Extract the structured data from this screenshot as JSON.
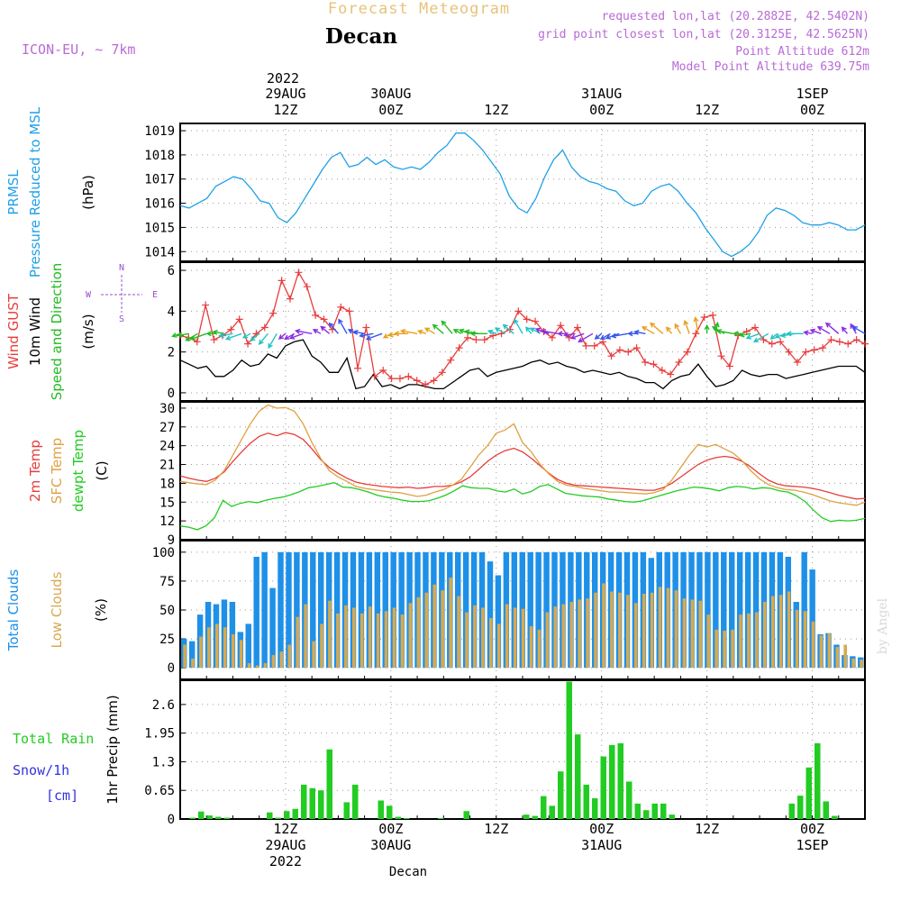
{
  "header": {
    "title": "Forecast Meteogram",
    "station": "Decan",
    "model": "ICON-EU, ~ 7km",
    "requested": "requested lon,lat (20.2882E, 42.5402N)",
    "gridpoint": "grid point closest lon,lat (20.3125E, 42.5625N)",
    "point_alt": "Point Altitude 612m",
    "model_alt": "Model Point Altitude 639.75m",
    "watermark": "by Angel",
    "footer": "Decan"
  },
  "colors": {
    "prmsl": "#1fa0e8",
    "gust": "#e83c3c",
    "wind": "#000000",
    "arrows_green": "#22bb22",
    "dir_purple": "#9a4fd0",
    "temp": "#e83c3c",
    "sfc": "#e0a040",
    "dewpt": "#22cc22",
    "total_clouds": "#1e90e8",
    "low_clouds": "#d7a950",
    "rain": "#22cc22",
    "snow": "#3333dd"
  },
  "time_axis": {
    "top_year": "2022",
    "ticks": [
      {
        "h": 12,
        "l1": "12Z",
        "l2": "29AUG",
        "l3": "2022"
      },
      {
        "h": 24,
        "l1": "00Z",
        "l2": "30AUG",
        "l3": ""
      },
      {
        "h": 36,
        "l1": "12Z",
        "l2": "",
        "l3": ""
      },
      {
        "h": 48,
        "l1": "00Z",
        "l2": "31AUG",
        "l3": ""
      },
      {
        "h": 60,
        "l1": "12Z",
        "l2": "",
        "l3": ""
      },
      {
        "h": 72,
        "l1": "00Z",
        "l2": "1SEP",
        "l3": ""
      }
    ]
  },
  "chart_data": [
    {
      "type": "line",
      "ylabel_lines": [
        {
          "text": "PRMSL",
          "color": "prmsl"
        },
        {
          "text": "Pressure Reduced to MSL",
          "color": "prmsl"
        },
        {
          "text": "(hPa)",
          "color": "wind"
        }
      ],
      "yticks": [
        1014,
        1015,
        1016,
        1017,
        1018,
        1019
      ],
      "ylim": [
        1013.6,
        1019.3
      ],
      "series": [
        {
          "color": "prmsl",
          "values": [
            1015.9,
            1015.8,
            1016.0,
            1016.2,
            1016.7,
            1016.9,
            1017.1,
            1017.0,
            1016.6,
            1016.1,
            1016.0,
            1015.4,
            1015.2,
            1015.6,
            1016.2,
            1016.8,
            1017.4,
            1017.9,
            1018.1,
            1017.5,
            1017.6,
            1017.9,
            1017.6,
            1017.8,
            1017.5,
            1017.4,
            1017.5,
            1017.4,
            1017.7,
            1018.1,
            1018.4,
            1018.9,
            1018.9,
            1018.6,
            1018.2,
            1017.7,
            1017.2,
            1016.3,
            1015.8,
            1015.6,
            1016.2,
            1017.1,
            1017.8,
            1018.2,
            1017.5,
            1017.1,
            1016.9,
            1016.8,
            1016.6,
            1016.5,
            1016.1,
            1015.9,
            1016.0,
            1016.5,
            1016.7,
            1016.8,
            1016.5,
            1016.0,
            1015.6,
            1015.0,
            1014.5,
            1014.0,
            1013.8,
            1014.0,
            1014.3,
            1014.8,
            1015.5,
            1015.8,
            1015.7,
            1015.5,
            1015.2,
            1015.1,
            1015.1,
            1015.2,
            1015.1,
            1014.9,
            1014.9,
            1015.1
          ]
        }
      ]
    },
    {
      "type": "line",
      "ylabel_lines": [
        {
          "text": "Wind GUST",
          "color": "gust"
        },
        {
          "text": "10m Wind",
          "color": "wind"
        },
        {
          "text": "Speed and Direction",
          "color": "arrows_green"
        },
        {
          "text": "(m/s)",
          "color": "wind"
        }
      ],
      "compass": {
        "n": "N",
        "s": "S",
        "w": "W",
        "e": "E"
      },
      "yticks": [
        0,
        2,
        4,
        6
      ],
      "ylim": [
        -0.4,
        6.4
      ],
      "arrow_level": 2.9,
      "series": [
        {
          "name": "gust",
          "color": "gust",
          "values": [
            2.8,
            2.7,
            2.5,
            4.3,
            2.6,
            2.8,
            3.1,
            3.6,
            2.4,
            2.9,
            3.2,
            3.9,
            5.5,
            4.6,
            5.9,
            5.2,
            3.8,
            3.6,
            3.1,
            4.2,
            4.0,
            1.2,
            3.2,
            0.8,
            1.1,
            0.7,
            0.7,
            0.8,
            0.6,
            0.4,
            0.6,
            1.0,
            1.6,
            2.2,
            2.7,
            2.6,
            2.6,
            2.8,
            2.9,
            3.1,
            4.0,
            3.6,
            3.5,
            3.0,
            2.7,
            3.3,
            2.7,
            3.2,
            2.3,
            2.3,
            2.5,
            1.8,
            2.1,
            2.0,
            2.2,
            1.5,
            1.4,
            1.1,
            0.9,
            1.5,
            2.0,
            2.9,
            3.7,
            3.8,
            1.8,
            1.3,
            2.8,
            3.0,
            3.2,
            2.6,
            2.4,
            2.5,
            2.0,
            1.5,
            2.0,
            2.1,
            2.2,
            2.6,
            2.5,
            2.4,
            2.6,
            2.4
          ]
        },
        {
          "name": "wind",
          "color": "wind",
          "values": [
            1.6,
            1.4,
            1.2,
            1.3,
            0.8,
            0.8,
            1.1,
            1.6,
            1.3,
            1.4,
            1.9,
            1.7,
            2.3,
            2.5,
            2.6,
            1.8,
            1.5,
            1.0,
            1.0,
            1.7,
            0.2,
            0.3,
            0.9,
            0.3,
            0.4,
            0.2,
            0.4,
            0.4,
            0.3,
            0.2,
            0.2,
            0.5,
            0.8,
            1.1,
            1.2,
            0.8,
            1.0,
            1.1,
            1.2,
            1.3,
            1.5,
            1.6,
            1.4,
            1.5,
            1.3,
            1.2,
            1.0,
            1.1,
            1.0,
            0.9,
            1.0,
            0.8,
            0.7,
            0.5,
            0.5,
            0.2,
            0.6,
            0.8,
            0.9,
            1.4,
            0.8,
            0.3,
            0.4,
            0.6,
            1.1,
            0.9,
            0.8,
            0.9,
            0.9,
            0.7,
            0.8,
            0.9,
            1.0,
            1.1,
            1.2,
            1.3,
            1.3,
            1.3,
            1.0
          ]
        },
        {
          "name": "direction",
          "color": "arrows_green",
          "values": [
            250,
            260,
            240,
            250,
            270,
            280,
            260,
            250,
            240,
            230,
            220,
            210,
            230,
            240,
            250,
            280,
            300,
            310,
            320,
            330,
            300,
            280,
            260,
            250,
            240,
            260,
            270,
            280,
            290,
            300,
            310,
            320,
            300,
            290,
            280,
            270,
            290,
            300,
            310,
            330,
            320,
            300,
            290,
            280,
            270,
            260,
            250,
            240,
            230,
            240,
            250,
            260,
            270,
            280,
            300,
            310,
            320,
            330,
            340,
            350,
            0,
            10,
            300,
            280,
            270,
            260,
            250,
            240,
            230,
            250,
            260,
            270,
            280,
            290,
            300,
            310,
            320,
            330,
            300
          ]
        }
      ]
    },
    {
      "type": "line",
      "ylabel_lines": [
        {
          "text": "2m Temp",
          "color": "temp"
        },
        {
          "text": "SFC Temp",
          "color": "sfc"
        },
        {
          "text": "dewpt Temp",
          "color": "dewpt"
        },
        {
          "text": "(C)",
          "color": "wind"
        }
      ],
      "yticks": [
        9,
        12,
        15,
        18,
        21,
        24,
        27,
        30
      ],
      "ylim": [
        9,
        31
      ],
      "series": [
        {
          "name": "2m Temp",
          "color": "temp",
          "values": [
            19.2,
            18.8,
            18.5,
            18.3,
            18.8,
            19.8,
            21.5,
            23.0,
            24.4,
            25.5,
            26.0,
            25.6,
            26.1,
            25.8,
            25.0,
            23.5,
            21.8,
            20.5,
            19.6,
            18.8,
            18.2,
            17.9,
            17.7,
            17.5,
            17.4,
            17.3,
            17.4,
            17.2,
            17.3,
            17.5,
            17.5,
            17.7,
            18.2,
            19.0,
            20.2,
            21.5,
            22.5,
            23.2,
            23.6,
            23.0,
            22.0,
            20.8,
            19.6,
            18.6,
            18.0,
            17.7,
            17.6,
            17.5,
            17.4,
            17.3,
            17.2,
            17.1,
            17.0,
            16.9,
            16.9,
            17.3,
            18.0,
            19.0,
            20.0,
            21.0,
            21.7,
            22.1,
            22.3,
            22.1,
            21.5,
            20.6,
            19.5,
            18.5,
            17.9,
            17.6,
            17.5,
            17.4,
            17.2,
            16.9,
            16.5,
            16.1,
            15.8,
            15.5,
            15.6
          ]
        },
        {
          "name": "SFC Temp",
          "color": "sfc",
          "values": [
            18.3,
            18.1,
            17.9,
            17.8,
            18.5,
            20.0,
            22.5,
            25.0,
            27.5,
            29.5,
            30.5,
            30.0,
            30.1,
            29.5,
            27.5,
            24.5,
            22.0,
            20.0,
            19.0,
            18.3,
            17.5,
            17.2,
            17.0,
            16.8,
            16.6,
            16.5,
            16.2,
            15.9,
            16.1,
            16.6,
            17.0,
            17.7,
            18.6,
            20.5,
            22.5,
            24.0,
            26.0,
            26.5,
            27.5,
            24.5,
            23.0,
            21.0,
            19.5,
            18.3,
            17.7,
            17.5,
            17.2,
            17.0,
            16.8,
            16.6,
            16.6,
            16.5,
            16.4,
            16.3,
            16.5,
            17.0,
            18.5,
            20.5,
            22.5,
            24.2,
            23.8,
            24.2,
            23.5,
            22.8,
            21.6,
            20.0,
            18.7,
            17.8,
            17.3,
            17.0,
            16.9,
            16.6,
            16.2,
            15.7,
            15.2,
            14.9,
            14.7,
            14.5,
            15.0
          ]
        },
        {
          "name": "dewpt Temp",
          "color": "dewpt",
          "values": [
            11.2,
            11.0,
            10.6,
            11.2,
            12.5,
            15.3,
            14.3,
            14.8,
            15.1,
            14.9,
            15.3,
            15.6,
            15.8,
            16.2,
            16.7,
            17.3,
            17.5,
            17.8,
            18.1,
            17.4,
            17.3,
            17.0,
            16.6,
            16.1,
            15.8,
            15.6,
            15.3,
            15.1,
            15.1,
            15.2,
            15.6,
            16.1,
            16.8,
            17.6,
            17.3,
            17.2,
            17.2,
            16.8,
            16.6,
            17.1,
            16.3,
            16.7,
            17.5,
            17.8,
            17.1,
            16.4,
            16.2,
            16.0,
            15.9,
            15.8,
            15.5,
            15.3,
            15.1,
            15.0,
            15.2,
            15.6,
            16.0,
            16.4,
            16.8,
            17.1,
            17.4,
            17.3,
            17.1,
            16.8,
            17.3,
            17.5,
            17.4,
            17.1,
            17.3,
            17.2,
            16.8,
            16.6,
            16.0,
            15.1,
            13.7,
            12.5,
            11.9,
            12.1,
            12.0,
            12.1,
            12.4
          ]
        }
      ]
    },
    {
      "type": "bar",
      "ylabel_lines": [
        {
          "text": "Total Clouds",
          "color": "total_clouds"
        },
        {
          "text": "Low Clouds",
          "color": "low_clouds"
        },
        {
          "text": "(%)",
          "color": "wind"
        }
      ],
      "yticks": [
        0,
        25,
        50,
        75,
        100
      ],
      "ylim": [
        -10,
        110
      ],
      "series": [
        {
          "name": "Total Clouds",
          "color": "total_clouds",
          "values": [
            25,
            23,
            46,
            57,
            55,
            59,
            57,
            31,
            38,
            96,
            100,
            69,
            100,
            100,
            100,
            100,
            100,
            100,
            100,
            100,
            100,
            100,
            100,
            100,
            100,
            100,
            100,
            100,
            100,
            100,
            100,
            100,
            100,
            100,
            100,
            100,
            100,
            100,
            92,
            80,
            100,
            100,
            100,
            100,
            100,
            100,
            100,
            100,
            100,
            100,
            100,
            100,
            100,
            100,
            100,
            100,
            100,
            100,
            95,
            100,
            100,
            100,
            100,
            100,
            100,
            100,
            100,
            100,
            100,
            100,
            100,
            100,
            100,
            100,
            100,
            96,
            57,
            100,
            85,
            29,
            30,
            20,
            11,
            10,
            9
          ]
        },
        {
          "name": "Low Clouds",
          "color": "low_clouds",
          "values": [
            20,
            8,
            27,
            35,
            38,
            35,
            29,
            24,
            4,
            2,
            4,
            11,
            14,
            20,
            44,
            55,
            23,
            38,
            58,
            47,
            54,
            52,
            47,
            53,
            47,
            49,
            52,
            46,
            56,
            61,
            65,
            72,
            67,
            78,
            62,
            48,
            54,
            52,
            43,
            38,
            55,
            52,
            51,
            36,
            33,
            48,
            53,
            55,
            57,
            59,
            60,
            65,
            73,
            66,
            65,
            63,
            56,
            64,
            65,
            70,
            69,
            67,
            60,
            59,
            58,
            46,
            33,
            32,
            33,
            46,
            47,
            48,
            57,
            62,
            63,
            66,
            50,
            49,
            40,
            28,
            30,
            18,
            20,
            8,
            7
          ]
        }
      ]
    },
    {
      "type": "bar",
      "ylabel_lines": [
        {
          "text": "1hr Precip (mm)",
          "color": "wind"
        }
      ],
      "side_labels": [
        {
          "text": "Total   Rain",
          "color": "rain"
        },
        {
          "text": "Snow/1h",
          "color": "snow"
        },
        {
          "text": "[cm]",
          "color": "snow"
        }
      ],
      "yticks": [
        "0",
        "0.65",
        "1.3",
        "1.95",
        "2.6"
      ],
      "ylim": [
        0,
        3.15
      ],
      "series": [
        {
          "name": "Total Rain",
          "color": "rain",
          "values": [
            0,
            0.03,
            0.17,
            0.08,
            0.05,
            0.03,
            0,
            0,
            0,
            0,
            0.15,
            0.03,
            0.18,
            0.23,
            0.78,
            0.7,
            0.65,
            1.58,
            0,
            0.38,
            0.78,
            0,
            0,
            0.42,
            0.3,
            0.05,
            0.02,
            0,
            0,
            0,
            0.02,
            0,
            0,
            0.18,
            0,
            0,
            0,
            0,
            0,
            0,
            0.1,
            0.07,
            0.52,
            0.3,
            1.08,
            3.12,
            1.92,
            0.78,
            0.47,
            1.42,
            1.68,
            1.72,
            0.85,
            0.35,
            0.2,
            0.35,
            0.35,
            0.1,
            0,
            0,
            0,
            0,
            0,
            0,
            0,
            0,
            0,
            0,
            0,
            0,
            0,
            0.35,
            0.53,
            1.17,
            1.72,
            0.4,
            0.07,
            0,
            0,
            0
          ]
        }
      ]
    }
  ]
}
